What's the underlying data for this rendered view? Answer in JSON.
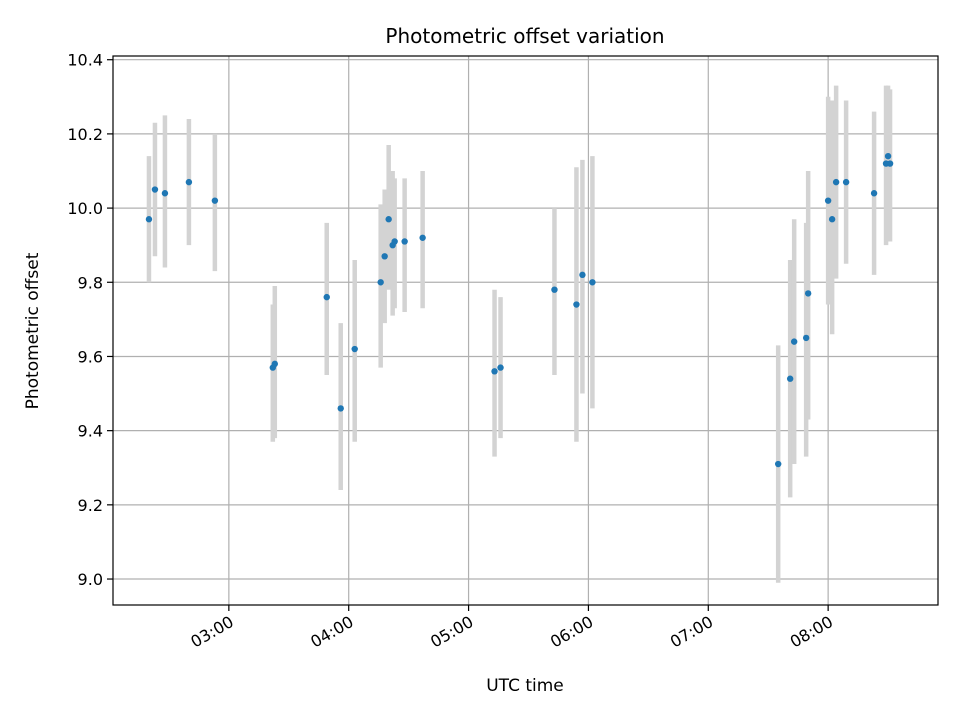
{
  "chart_data": {
    "type": "scatter",
    "title": "Photometric offset variation",
    "xlabel": "UTC time",
    "ylabel": "Photometric offset",
    "x_axis_kind": "time",
    "xlim": [
      "02:02",
      "08:55"
    ],
    "ylim": [
      8.93,
      10.41
    ],
    "x_ticks": [
      "03:00",
      "04:00",
      "05:00",
      "06:00",
      "07:00",
      "08:00"
    ],
    "y_ticks": [
      9.0,
      9.2,
      9.4,
      9.6,
      9.8,
      10.0,
      10.2,
      10.4
    ],
    "y_tick_labels": [
      "9.0",
      "9.2",
      "9.4",
      "9.6",
      "9.8",
      "10.0",
      "10.2",
      "10.4"
    ],
    "grid": true,
    "colors": {
      "point": "#1f77b4",
      "errorbar": "#d3d3d3",
      "grid": "#b0b0b0"
    },
    "points": [
      {
        "t": "02:20",
        "y": 9.97,
        "lo": 9.8,
        "hi": 10.14
      },
      {
        "t": "02:23",
        "y": 10.05,
        "lo": 9.87,
        "hi": 10.23
      },
      {
        "t": "02:28",
        "y": 10.04,
        "lo": 9.84,
        "hi": 10.25
      },
      {
        "t": "02:40",
        "y": 10.07,
        "lo": 9.9,
        "hi": 10.24
      },
      {
        "t": "02:53",
        "y": 10.02,
        "lo": 9.83,
        "hi": 10.2
      },
      {
        "t": "03:22",
        "y": 9.57,
        "lo": 9.37,
        "hi": 9.74
      },
      {
        "t": "03:23",
        "y": 9.58,
        "lo": 9.38,
        "hi": 9.79
      },
      {
        "t": "03:49",
        "y": 9.76,
        "lo": 9.55,
        "hi": 9.96
      },
      {
        "t": "03:56",
        "y": 9.46,
        "lo": 9.24,
        "hi": 9.69
      },
      {
        "t": "04:03",
        "y": 9.62,
        "lo": 9.37,
        "hi": 9.86
      },
      {
        "t": "04:16",
        "y": 9.8,
        "lo": 9.57,
        "hi": 10.01
      },
      {
        "t": "04:18",
        "y": 9.87,
        "lo": 9.69,
        "hi": 10.05
      },
      {
        "t": "04:20",
        "y": 9.97,
        "lo": 9.78,
        "hi": 10.17
      },
      {
        "t": "04:22",
        "y": 9.9,
        "lo": 9.71,
        "hi": 10.1
      },
      {
        "t": "04:23",
        "y": 9.91,
        "lo": 9.73,
        "hi": 10.08
      },
      {
        "t": "04:28",
        "y": 9.91,
        "lo": 9.72,
        "hi": 10.08
      },
      {
        "t": "04:37",
        "y": 9.92,
        "lo": 9.73,
        "hi": 10.1
      },
      {
        "t": "05:13",
        "y": 9.56,
        "lo": 9.33,
        "hi": 9.78
      },
      {
        "t": "05:16",
        "y": 9.57,
        "lo": 9.38,
        "hi": 9.76
      },
      {
        "t": "05:43",
        "y": 9.78,
        "lo": 9.55,
        "hi": 10.0
      },
      {
        "t": "05:54",
        "y": 9.74,
        "lo": 9.37,
        "hi": 10.11
      },
      {
        "t": "05:57",
        "y": 9.82,
        "lo": 9.5,
        "hi": 10.13
      },
      {
        "t": "06:02",
        "y": 9.8,
        "lo": 9.46,
        "hi": 10.14
      },
      {
        "t": "07:35",
        "y": 9.31,
        "lo": 8.99,
        "hi": 9.63
      },
      {
        "t": "07:41",
        "y": 9.54,
        "lo": 9.22,
        "hi": 9.86
      },
      {
        "t": "07:43",
        "y": 9.64,
        "lo": 9.31,
        "hi": 9.97
      },
      {
        "t": "07:49",
        "y": 9.65,
        "lo": 9.33,
        "hi": 9.96
      },
      {
        "t": "07:50",
        "y": 9.77,
        "lo": 9.43,
        "hi": 10.1
      },
      {
        "t": "08:00",
        "y": 10.02,
        "lo": 9.74,
        "hi": 10.3
      },
      {
        "t": "08:02",
        "y": 9.97,
        "lo": 9.66,
        "hi": 10.29
      },
      {
        "t": "08:04",
        "y": 10.07,
        "lo": 9.81,
        "hi": 10.33
      },
      {
        "t": "08:09",
        "y": 10.07,
        "lo": 9.85,
        "hi": 10.29
      },
      {
        "t": "08:23",
        "y": 10.04,
        "lo": 9.82,
        "hi": 10.26
      },
      {
        "t": "08:29",
        "y": 10.12,
        "lo": 9.9,
        "hi": 10.33
      },
      {
        "t": "08:30",
        "y": 10.14,
        "lo": 9.91,
        "hi": 10.33
      },
      {
        "t": "08:31",
        "y": 10.12,
        "lo": 9.91,
        "hi": 10.32
      }
    ]
  }
}
